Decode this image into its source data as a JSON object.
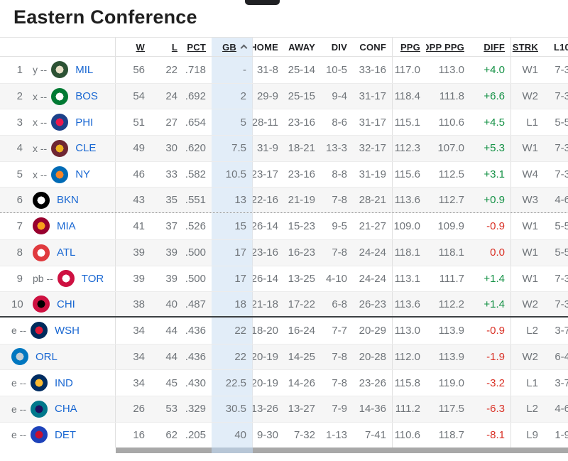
{
  "title": "Eastern Conference",
  "sort": {
    "column": "gb",
    "direction": "asc"
  },
  "colors": {
    "link_blue": "#1967d2",
    "positive_green": "#149145",
    "negative_red": "#d93025",
    "gb_highlight": "#e2edf8"
  },
  "table": {
    "columns": [
      {
        "key": "w",
        "label": "W",
        "sortable": true
      },
      {
        "key": "l",
        "label": "L",
        "sortable": true
      },
      {
        "key": "pct",
        "label": "PCT",
        "sortable": true
      },
      {
        "key": "gb",
        "label": "GB",
        "sortable": true,
        "sorted": "asc",
        "highlight": true
      },
      {
        "key": "home",
        "label": "HOME",
        "sortable": false
      },
      {
        "key": "away",
        "label": "AWAY",
        "sortable": false
      },
      {
        "key": "div",
        "label": "DIV",
        "sortable": false
      },
      {
        "key": "conf",
        "label": "CONF",
        "sortable": false
      },
      {
        "key": "ppg",
        "label": "PPG",
        "sortable": true
      },
      {
        "key": "opp_ppg",
        "label": "OPP PPG",
        "sortable": true
      },
      {
        "key": "diff",
        "label": "DIFF",
        "sortable": true
      },
      {
        "key": "strk",
        "label": "STRK",
        "sortable": true
      },
      {
        "key": "l10",
        "label": "L10",
        "sortable": false
      }
    ],
    "rows": [
      {
        "rank": "1",
        "prefix": "y --",
        "abbr": "MIL",
        "logo_colors": [
          "#2c5234",
          "#e8e0c8"
        ],
        "w": "56",
        "l": "22",
        "pct": ".718",
        "gb": "-",
        "home": "31-8",
        "away": "25-14",
        "div": "10-5",
        "conf": "33-16",
        "ppg": "117.0",
        "opp_ppg": "113.0",
        "diff": "+4.0",
        "strk": "W1",
        "l10": "7-3"
      },
      {
        "rank": "2",
        "prefix": "x --",
        "abbr": "BOS",
        "logo_colors": [
          "#007a33",
          "#ffffff"
        ],
        "w": "54",
        "l": "24",
        "pct": ".692",
        "gb": "2",
        "home": "29-9",
        "away": "25-15",
        "div": "9-4",
        "conf": "31-17",
        "ppg": "118.4",
        "opp_ppg": "111.8",
        "diff": "+6.6",
        "strk": "W2",
        "l10": "7-3"
      },
      {
        "rank": "3",
        "prefix": "x --",
        "abbr": "PHI",
        "logo_colors": [
          "#1d428a",
          "#ed174c"
        ],
        "w": "51",
        "l": "27",
        "pct": ".654",
        "gb": "5",
        "home": "28-11",
        "away": "23-16",
        "div": "8-6",
        "conf": "31-17",
        "ppg": "115.1",
        "opp_ppg": "110.6",
        "diff": "+4.5",
        "strk": "L1",
        "l10": "5-5"
      },
      {
        "rank": "4",
        "prefix": "x --",
        "abbr": "CLE",
        "logo_colors": [
          "#6f2633",
          "#efb21f"
        ],
        "w": "49",
        "l": "30",
        "pct": ".620",
        "gb": "7.5",
        "home": "31-9",
        "away": "18-21",
        "div": "13-3",
        "conf": "32-17",
        "ppg": "112.3",
        "opp_ppg": "107.0",
        "diff": "+5.3",
        "strk": "W1",
        "l10": "7-3"
      },
      {
        "rank": "5",
        "prefix": "x --",
        "abbr": "NY",
        "logo_colors": [
          "#006bb6",
          "#f58426"
        ],
        "w": "46",
        "l": "33",
        "pct": ".582",
        "gb": "10.5",
        "home": "23-17",
        "away": "23-16",
        "div": "8-8",
        "conf": "31-19",
        "ppg": "115.6",
        "opp_ppg": "112.5",
        "diff": "+3.1",
        "strk": "W4",
        "l10": "7-3"
      },
      {
        "rank": "6",
        "prefix": "",
        "abbr": "BKN",
        "logo_colors": [
          "#000000",
          "#ffffff"
        ],
        "w": "43",
        "l": "35",
        "pct": ".551",
        "gb": "13",
        "home": "22-16",
        "away": "21-19",
        "div": "7-8",
        "conf": "28-21",
        "ppg": "113.6",
        "opp_ppg": "112.7",
        "diff": "+0.9",
        "strk": "W3",
        "l10": "4-6",
        "separator_after": "dotted"
      },
      {
        "rank": "7",
        "prefix": "",
        "abbr": "MIA",
        "logo_colors": [
          "#98002e",
          "#f9a01b"
        ],
        "w": "41",
        "l": "37",
        "pct": ".526",
        "gb": "15",
        "home": "26-14",
        "away": "15-23",
        "div": "9-5",
        "conf": "21-27",
        "ppg": "109.0",
        "opp_ppg": "109.9",
        "diff": "-0.9",
        "strk": "W1",
        "l10": "5-5"
      },
      {
        "rank": "8",
        "prefix": "",
        "abbr": "ATL",
        "logo_colors": [
          "#e03a3e",
          "#ffffff"
        ],
        "w": "39",
        "l": "39",
        "pct": ".500",
        "gb": "17",
        "home": "23-16",
        "away": "16-23",
        "div": "7-8",
        "conf": "24-24",
        "ppg": "118.1",
        "opp_ppg": "118.1",
        "diff": "0.0",
        "strk": "W1",
        "l10": "5-5"
      },
      {
        "rank": "9",
        "prefix": "pb --",
        "abbr": "TOR",
        "logo_colors": [
          "#ce1141",
          "#ffffff"
        ],
        "w": "39",
        "l": "39",
        "pct": ".500",
        "gb": "17",
        "home": "26-14",
        "away": "13-25",
        "div": "4-10",
        "conf": "24-24",
        "ppg": "113.1",
        "opp_ppg": "111.7",
        "diff": "+1.4",
        "strk": "W1",
        "l10": "7-3"
      },
      {
        "rank": "10",
        "prefix": "",
        "abbr": "CHI",
        "logo_colors": [
          "#ce1141",
          "#000000"
        ],
        "w": "38",
        "l": "40",
        "pct": ".487",
        "gb": "18",
        "home": "21-18",
        "away": "17-22",
        "div": "6-8",
        "conf": "26-23",
        "ppg": "113.6",
        "opp_ppg": "112.2",
        "diff": "+1.4",
        "strk": "W2",
        "l10": "7-3",
        "separator_after": "solid"
      },
      {
        "rank": "",
        "prefix": "e --",
        "abbr": "WSH",
        "logo_colors": [
          "#002b5c",
          "#e31837"
        ],
        "w": "34",
        "l": "44",
        "pct": ".436",
        "gb": "22",
        "home": "18-20",
        "away": "16-24",
        "div": "7-7",
        "conf": "20-29",
        "ppg": "113.0",
        "opp_ppg": "113.9",
        "diff": "-0.9",
        "strk": "L2",
        "l10": "3-7"
      },
      {
        "rank": "",
        "prefix": "",
        "abbr": "ORL",
        "logo_colors": [
          "#0077c0",
          "#c4ced4"
        ],
        "w": "34",
        "l": "44",
        "pct": ".436",
        "gb": "22",
        "home": "20-19",
        "away": "14-25",
        "div": "7-8",
        "conf": "20-28",
        "ppg": "112.0",
        "opp_ppg": "113.9",
        "diff": "-1.9",
        "strk": "W2",
        "l10": "6-4"
      },
      {
        "rank": "",
        "prefix": "e --",
        "abbr": "IND",
        "logo_colors": [
          "#002d62",
          "#fdbb30"
        ],
        "w": "34",
        "l": "45",
        "pct": ".430",
        "gb": "22.5",
        "home": "20-19",
        "away": "14-26",
        "div": "7-8",
        "conf": "23-26",
        "ppg": "115.8",
        "opp_ppg": "119.0",
        "diff": "-3.2",
        "strk": "L1",
        "l10": "3-7"
      },
      {
        "rank": "",
        "prefix": "e --",
        "abbr": "CHA",
        "logo_colors": [
          "#00788c",
          "#1d1160"
        ],
        "w": "26",
        "l": "53",
        "pct": ".329",
        "gb": "30.5",
        "home": "13-26",
        "away": "13-27",
        "div": "7-9",
        "conf": "14-36",
        "ppg": "111.2",
        "opp_ppg": "117.5",
        "diff": "-6.3",
        "strk": "L2",
        "l10": "4-6"
      },
      {
        "rank": "",
        "prefix": "e --",
        "abbr": "DET",
        "logo_colors": [
          "#1d42ba",
          "#c8102e"
        ],
        "w": "16",
        "l": "62",
        "pct": ".205",
        "gb": "40",
        "home": "9-30",
        "away": "7-32",
        "div": "1-13",
        "conf": "7-41",
        "ppg": "110.6",
        "opp_ppg": "118.7",
        "diff": "-8.1",
        "strk": "L9",
        "l10": "1-9"
      }
    ]
  }
}
